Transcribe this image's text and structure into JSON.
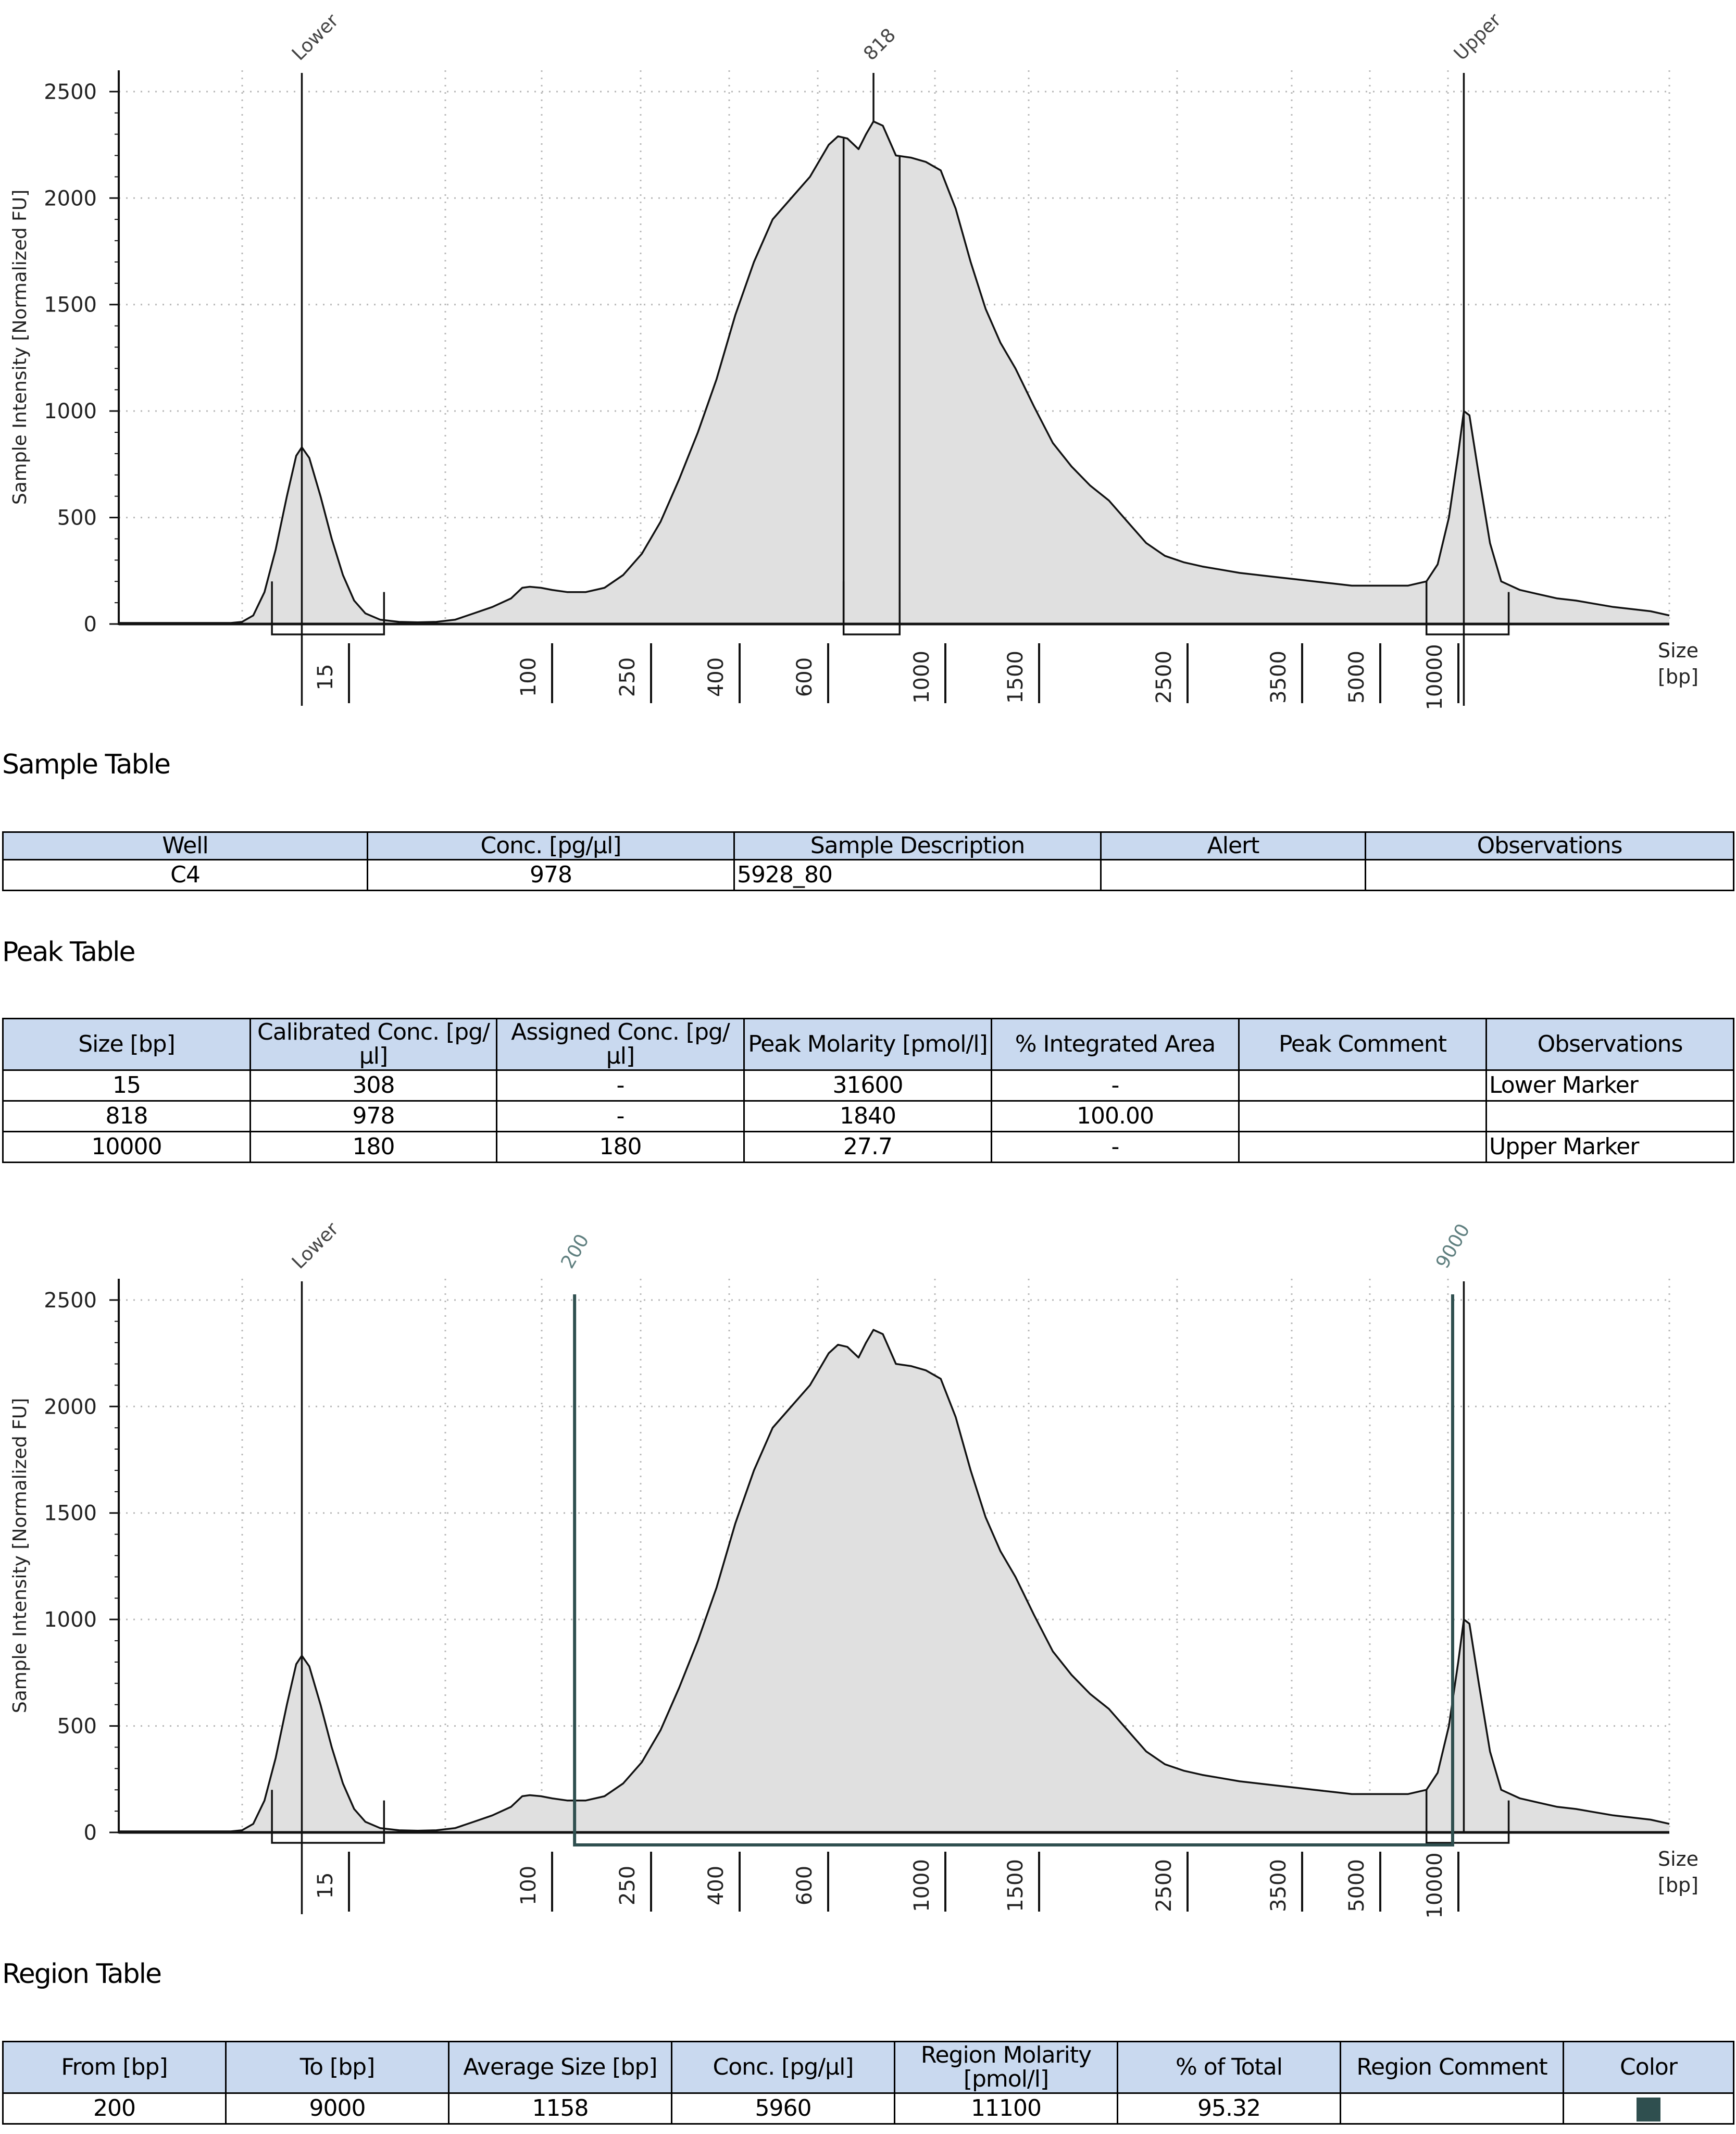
{
  "colors": {
    "fill": "#e0e0e0",
    "line": "#111111",
    "grid": "#b8b8b8",
    "region": "#2f4f4f",
    "header": "#c9d9ef",
    "regionLabel": "#5f7f7f"
  },
  "chart_data": [
    {
      "type": "area",
      "ylabel": "Sample Intensity [Normalized FU]",
      "xlabel": "Size [bp]",
      "xlabel_lines": [
        "Size",
        "[bp]"
      ],
      "ylim": [
        0,
        2600
      ],
      "yticks": [
        0,
        500,
        1000,
        1500,
        2000,
        2500
      ],
      "x_tick_labels": [
        "15",
        "100",
        "250",
        "400",
        "600",
        "1000",
        "1500",
        "2500",
        "3500",
        "5000",
        "10000"
      ],
      "grid": true,
      "peak_labels": [
        "Lower",
        "818",
        "Upper"
      ],
      "trace": [
        [
          0,
          5
        ],
        [
          0.5,
          5
        ],
        [
          1,
          5
        ],
        [
          1.5,
          5
        ],
        [
          2,
          5
        ],
        [
          2.5,
          5
        ],
        [
          3,
          5
        ],
        [
          3.3,
          10
        ],
        [
          3.6,
          40
        ],
        [
          3.9,
          150
        ],
        [
          4.2,
          350
        ],
        [
          4.5,
          600
        ],
        [
          4.75,
          790
        ],
        [
          4.9,
          830
        ],
        [
          5.1,
          780
        ],
        [
          5.4,
          600
        ],
        [
          5.7,
          400
        ],
        [
          6,
          230
        ],
        [
          6.3,
          110
        ],
        [
          6.6,
          50
        ],
        [
          7,
          20
        ],
        [
          7.5,
          10
        ],
        [
          8,
          8
        ],
        [
          8.5,
          10
        ],
        [
          9,
          20
        ],
        [
          9.5,
          50
        ],
        [
          10,
          80
        ],
        [
          10.5,
          120
        ],
        [
          10.8,
          170
        ],
        [
          11,
          175
        ],
        [
          11.3,
          170
        ],
        [
          11.6,
          160
        ],
        [
          12,
          150
        ],
        [
          12.5,
          150
        ],
        [
          13,
          170
        ],
        [
          13.5,
          230
        ],
        [
          14,
          330
        ],
        [
          14.5,
          480
        ],
        [
          15,
          680
        ],
        [
          15.5,
          900
        ],
        [
          16,
          1150
        ],
        [
          16.5,
          1450
        ],
        [
          17,
          1700
        ],
        [
          17.5,
          1900
        ],
        [
          18,
          2000
        ],
        [
          18.5,
          2100
        ],
        [
          19,
          2250
        ],
        [
          19.25,
          2290
        ],
        [
          19.5,
          2280
        ],
        [
          19.8,
          2230
        ],
        [
          20,
          2300
        ],
        [
          20.2,
          2360
        ],
        [
          20.45,
          2340
        ],
        [
          20.8,
          2200
        ],
        [
          21.2,
          2190
        ],
        [
          21.6,
          2170
        ],
        [
          22,
          2130
        ],
        [
          22.4,
          1950
        ],
        [
          22.8,
          1700
        ],
        [
          23.2,
          1480
        ],
        [
          23.6,
          1320
        ],
        [
          24,
          1200
        ],
        [
          24.5,
          1020
        ],
        [
          25,
          850
        ],
        [
          25.5,
          740
        ],
        [
          26,
          650
        ],
        [
          26.5,
          580
        ],
        [
          27,
          480
        ],
        [
          27.5,
          380
        ],
        [
          28,
          320
        ],
        [
          28.5,
          290
        ],
        [
          29,
          270
        ],
        [
          29.5,
          255
        ],
        [
          30,
          240
        ],
        [
          30.5,
          230
        ],
        [
          31,
          220
        ],
        [
          31.5,
          210
        ],
        [
          32,
          200
        ],
        [
          32.5,
          190
        ],
        [
          33,
          180
        ],
        [
          33.5,
          180
        ],
        [
          34,
          180
        ],
        [
          34.5,
          180
        ],
        [
          35,
          200
        ],
        [
          35.3,
          280
        ],
        [
          35.6,
          500
        ],
        [
          35.85,
          800
        ],
        [
          36,
          1000
        ],
        [
          36.15,
          980
        ],
        [
          36.4,
          700
        ],
        [
          36.7,
          380
        ],
        [
          37,
          200
        ],
        [
          37.5,
          160
        ],
        [
          38,
          140
        ],
        [
          38.5,
          120
        ],
        [
          39,
          110
        ],
        [
          39.5,
          95
        ],
        [
          40,
          80
        ],
        [
          40.5,
          70
        ],
        [
          41,
          60
        ],
        [
          41.5,
          40
        ]
      ],
      "marker_brackets": [
        [
          4.1,
          7.1
        ],
        [
          19.4,
          20.9
        ],
        [
          35.0,
          37.2
        ]
      ],
      "peak_lines": [
        4.9,
        20.2,
        36.0
      ]
    },
    {
      "type": "area",
      "ylabel": "Sample Intensity [Normalized FU]",
      "xlabel": "Size [bp]",
      "xlabel_lines": [
        "Size",
        "[bp]"
      ],
      "ylim": [
        0,
        2600
      ],
      "yticks": [
        0,
        500,
        1000,
        1500,
        2000,
        2500
      ],
      "x_tick_labels": [
        "15",
        "100",
        "250",
        "400",
        "600",
        "1000",
        "1500",
        "2500",
        "3500",
        "5000",
        "10000"
      ],
      "grid": true,
      "peak_labels": [
        "Lower"
      ],
      "region_labels": [
        "200",
        "9000"
      ],
      "region": [
        12.2,
        35.7
      ],
      "marker_brackets": [
        [
          4.1,
          7.1
        ],
        [
          35.0,
          37.2
        ]
      ],
      "peak_lines": [
        4.9,
        36.0
      ]
    }
  ],
  "sample_table": {
    "title": "Sample Table",
    "headers": [
      "Well",
      "Conc. [pg/µl]",
      "Sample Description",
      "Alert",
      "Observations"
    ],
    "rows": [
      [
        "C4",
        "978",
        "5928_80",
        "",
        ""
      ]
    ]
  },
  "peak_table": {
    "title": "Peak Table",
    "headers": [
      "Size [bp]",
      "Calibrated Conc. [pg/µl]",
      "Assigned Conc. [pg/µl]",
      "Peak Molarity [pmol/l]",
      "% Integrated Area",
      "Peak Comment",
      "Observations"
    ],
    "rows": [
      [
        "15",
        "308",
        "-",
        "31600",
        "-",
        "",
        "Lower Marker"
      ],
      [
        "818",
        "978",
        "-",
        "1840",
        "100.00",
        "",
        ""
      ],
      [
        "10000",
        "180",
        "180",
        "27.7",
        "-",
        "",
        "Upper Marker"
      ]
    ]
  },
  "region_table": {
    "title": "Region Table",
    "headers": [
      "From [bp]",
      "To [bp]",
      "Average Size [bp]",
      "Conc. [pg/µl]",
      "Region Molarity [pmol/l]",
      "% of Total",
      "Region Comment",
      "Color"
    ],
    "rows": [
      [
        "200",
        "9000",
        "1158",
        "5960",
        "11100",
        "95.32",
        ""
      ]
    ]
  }
}
